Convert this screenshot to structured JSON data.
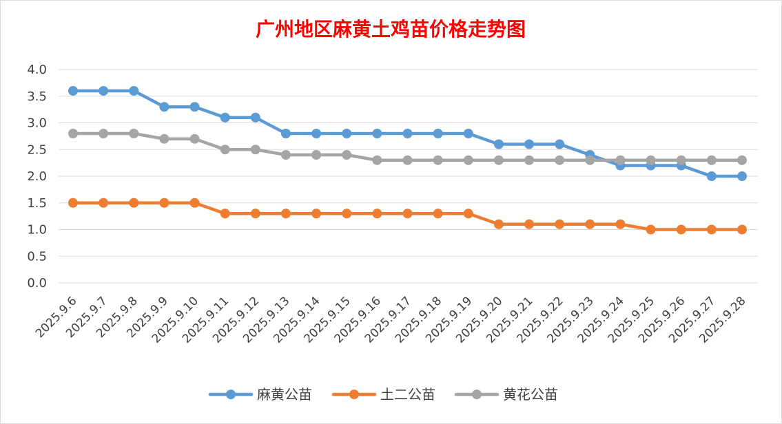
{
  "chart_data": {
    "type": "line",
    "title": "广州地区麻黄土鸡苗价格走势图",
    "xlabel": "",
    "ylabel": "",
    "ylim": [
      0,
      4.0
    ],
    "yticks": [
      "0.0",
      "0.5",
      "1.0",
      "1.5",
      "2.0",
      "2.5",
      "3.0",
      "3.5",
      "4.0"
    ],
    "grid": true,
    "legend_position": "bottom",
    "categories": [
      "2025.9.6",
      "2025.9.7",
      "2025.9.8",
      "2025.9.9",
      "2025.9.10",
      "2025.9.11",
      "2025.9.12",
      "2025.9.13",
      "2025.9.14",
      "2025.9.15",
      "2025.9.16",
      "2025.9.17",
      "2025.9.18",
      "2025.9.19",
      "2025.9.20",
      "2025.9.21",
      "2025.9.22",
      "2025.9.23",
      "2025.9.24",
      "2025.9.25",
      "2025.9.26",
      "2025.9.27",
      "2025.9.28"
    ],
    "series": [
      {
        "name": "麻黄公苗",
        "color": "#5b9bd5",
        "values": [
          3.6,
          3.6,
          3.6,
          3.3,
          3.3,
          3.1,
          3.1,
          2.8,
          2.8,
          2.8,
          2.8,
          2.8,
          2.8,
          2.8,
          2.6,
          2.6,
          2.6,
          2.4,
          2.2,
          2.2,
          2.2,
          2.0,
          2.0
        ]
      },
      {
        "name": "土二公苗",
        "color": "#ed7d31",
        "values": [
          1.5,
          1.5,
          1.5,
          1.5,
          1.5,
          1.3,
          1.3,
          1.3,
          1.3,
          1.3,
          1.3,
          1.3,
          1.3,
          1.3,
          1.1,
          1.1,
          1.1,
          1.1,
          1.1,
          1.0,
          1.0,
          1.0,
          1.0
        ]
      },
      {
        "name": "黄花公苗",
        "color": "#a5a5a5",
        "values": [
          2.8,
          2.8,
          2.8,
          2.7,
          2.7,
          2.5,
          2.5,
          2.4,
          2.4,
          2.4,
          2.3,
          2.3,
          2.3,
          2.3,
          2.3,
          2.3,
          2.3,
          2.3,
          2.3,
          2.3,
          2.3,
          2.3,
          2.3
        ]
      }
    ]
  }
}
